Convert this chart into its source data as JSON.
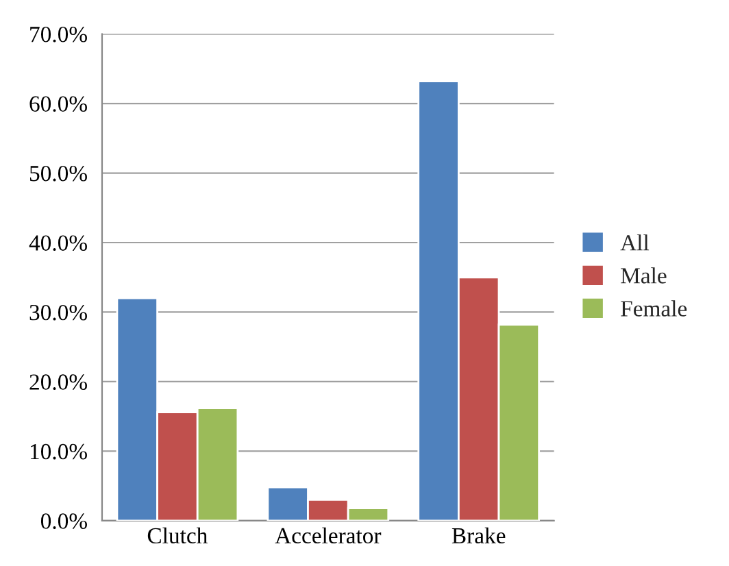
{
  "chart_data": {
    "type": "bar",
    "categories": [
      "Clutch",
      "Accelerator",
      "Brake"
    ],
    "series": [
      {
        "name": "All",
        "color": "#4f81bd",
        "values": [
          32.0,
          4.8,
          63.2
        ]
      },
      {
        "name": "Male",
        "color": "#c0504d",
        "values": [
          15.6,
          3.0,
          35.0
        ]
      },
      {
        "name": "Female",
        "color": "#9bbb59",
        "values": [
          16.2,
          1.8,
          28.2
        ]
      }
    ],
    "ylim": [
      0,
      70
    ],
    "yticks": [
      {
        "value": 0,
        "label": "0.0%"
      },
      {
        "value": 10,
        "label": "10.0%"
      },
      {
        "value": 20,
        "label": "20.0%"
      },
      {
        "value": 30,
        "label": "30.0%"
      },
      {
        "value": 40,
        "label": "40.0%"
      },
      {
        "value": 50,
        "label": "50.0%"
      },
      {
        "value": 60,
        "label": "60.0%"
      },
      {
        "value": 70,
        "label": "70.0%"
      }
    ],
    "grid": "y",
    "legend": "right"
  }
}
